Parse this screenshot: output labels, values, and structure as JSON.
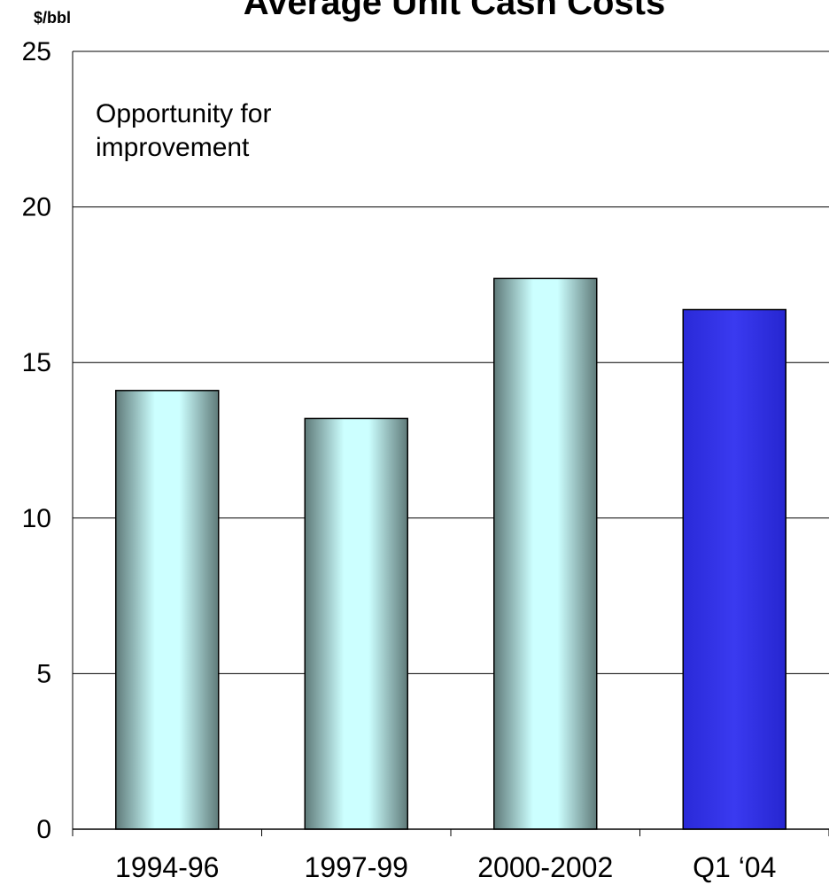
{
  "chart_data": {
    "type": "bar",
    "title": "Average Unit Cash Costs",
    "ylabel": "$/bbl",
    "categories": [
      "1994-96",
      "1997-99",
      "2000-2002",
      "Q1 ‘04"
    ],
    "values": [
      14.1,
      13.2,
      17.7,
      16.7
    ],
    "ylim": [
      0,
      25
    ],
    "yticks": [
      "0",
      "5",
      "10",
      "15",
      "20",
      "25"
    ],
    "grid": true,
    "annotation": [
      "Opportunity for",
      "improvement"
    ],
    "colors": {
      "historic_bar_edge": "#5f7a79",
      "historic_bar_center": "#ccffff",
      "highlight_bar": "#2e2ee6",
      "gridline": "#000000"
    }
  }
}
